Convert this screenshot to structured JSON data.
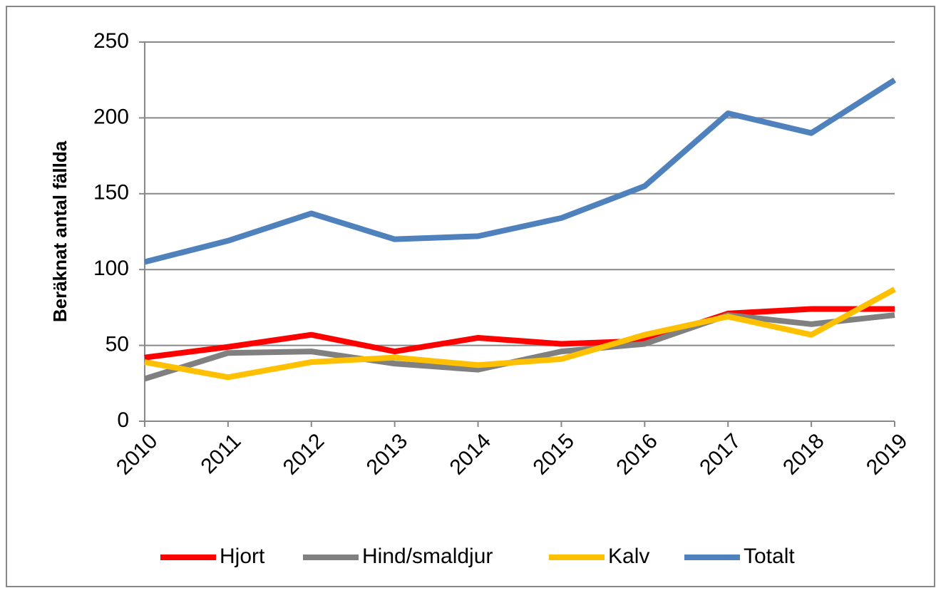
{
  "chart_data": {
    "type": "line",
    "y_label": "Beräknat antal fällda",
    "categories": [
      "2010",
      "2011",
      "2012",
      "2013",
      "2014",
      "2015",
      "2016",
      "2017",
      "2018",
      "2019"
    ],
    "series": [
      {
        "name": "Hjort",
        "color": "#ff0000",
        "values": [
          42,
          49,
          57,
          46,
          55,
          51,
          53,
          71,
          74,
          74
        ]
      },
      {
        "name": "Hind/smaldjur",
        "color": "#808080",
        "values": [
          28,
          45,
          46,
          38,
          34,
          46,
          51,
          70,
          64,
          70
        ]
      },
      {
        "name": "Kalv",
        "color": "#ffc000",
        "values": [
          39,
          29,
          39,
          42,
          37,
          41,
          57,
          69,
          57,
          87
        ]
      },
      {
        "name": "Totalt",
        "color": "#4f81bd",
        "values": [
          105,
          119,
          137,
          120,
          122,
          134,
          155,
          203,
          190,
          225
        ]
      }
    ],
    "ylim": [
      0,
      250
    ],
    "yticks": [
      0,
      50,
      100,
      150,
      200,
      250
    ],
    "grid": true,
    "legend": "bottom"
  }
}
